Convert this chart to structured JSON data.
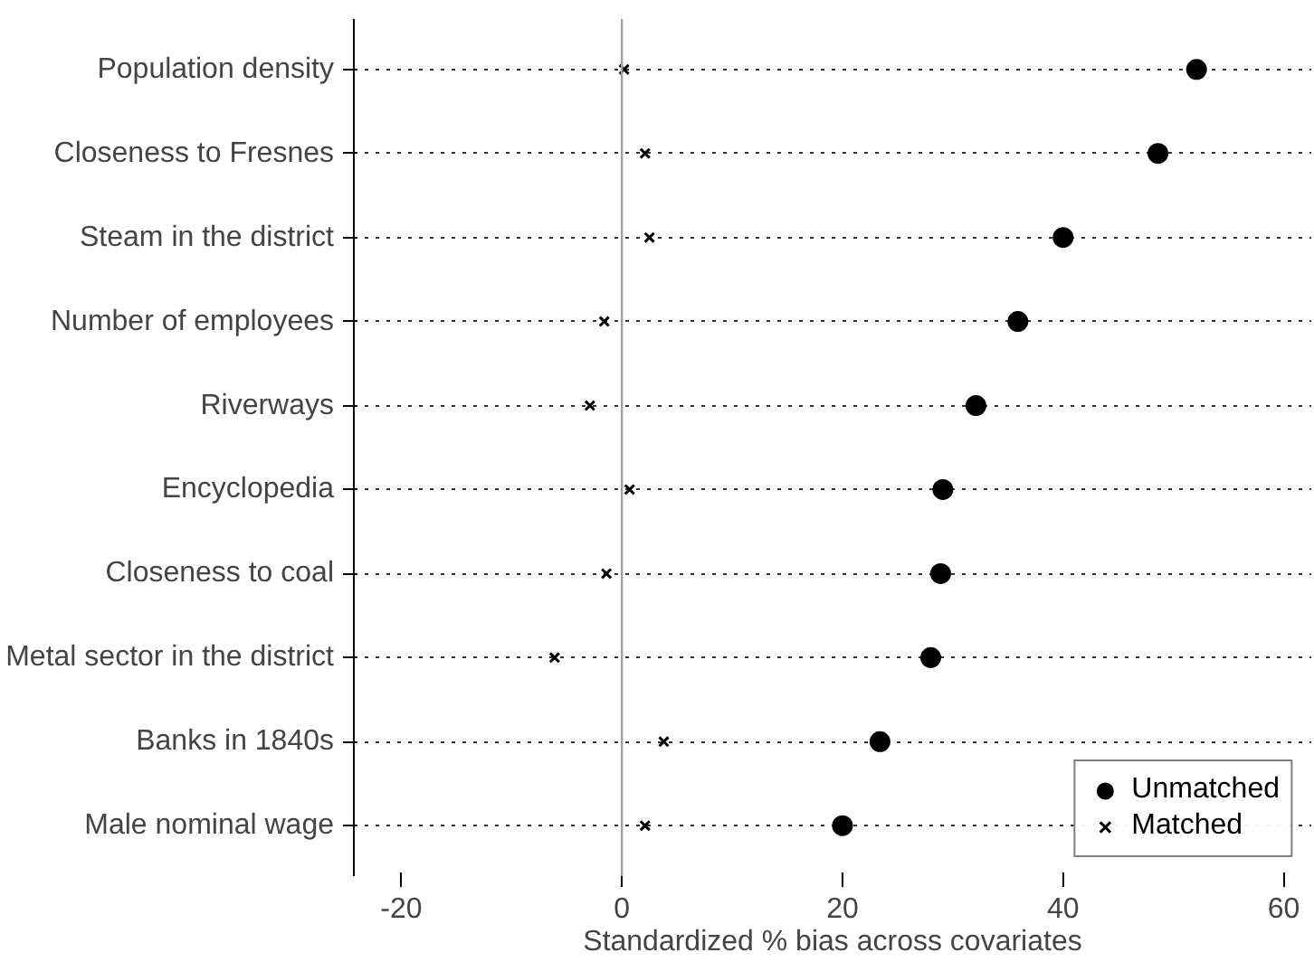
{
  "chart_data": {
    "type": "scatter",
    "orientation": "horizontal",
    "xlabel": "Standardized % bias across covariates",
    "categories": [
      "Population density",
      "Closeness to Fresnes",
      "Steam in the district",
      "Number of employees",
      "Riverways",
      "Encyclopedia",
      "Closeness to coal",
      "Metal sector in the district",
      "Banks in 1840s",
      "Male nominal wage"
    ],
    "series": [
      {
        "name": "Unmatched",
        "color": "#000000",
        "marker": "circle",
        "values": [
          52.1,
          48.6,
          40.0,
          35.9,
          32.1,
          29.1,
          28.9,
          28.0,
          23.4,
          20.0
        ]
      },
      {
        "name": "Matched",
        "color": "#000000",
        "marker": "cross",
        "values": [
          0.2,
          2.1,
          2.5,
          -1.6,
          -2.9,
          0.7,
          -1.4,
          -6.1,
          3.8,
          2.1
        ]
      }
    ],
    "xlim": [
      -24.3,
      62.5
    ],
    "xticks": [
      -20,
      0,
      20,
      40,
      60
    ],
    "ref_lines": [
      {
        "axis": "x",
        "value": 0,
        "color": "#a0a0a0",
        "line_style": "solid"
      }
    ],
    "grid": "y",
    "line_style": "dotted",
    "legend": "bottom right"
  }
}
